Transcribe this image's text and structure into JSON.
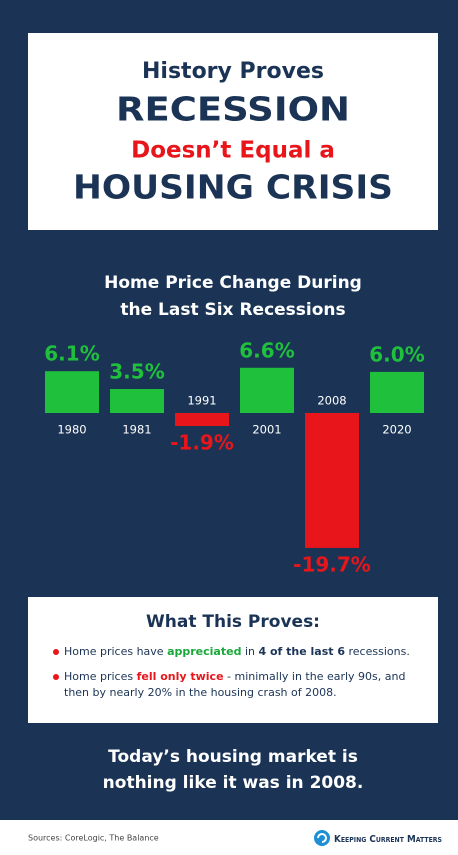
{
  "header": {
    "line1": "History Proves",
    "line2": "RECESSION",
    "line3": "Doesn’t Equal a",
    "line4": "HOUSING CRISIS"
  },
  "chart_data": {
    "type": "bar",
    "title_lines": [
      "Home Price Change During",
      "the Last Six Recessions"
    ],
    "categories": [
      "1980",
      "1981",
      "1991",
      "2001",
      "2008",
      "2020"
    ],
    "values": [
      6.1,
      3.5,
      -1.9,
      6.6,
      -19.7,
      6.0
    ],
    "value_labels": [
      "6.1%",
      "3.5%",
      "-1.9%",
      "6.6%",
      "-19.7%",
      "6.0%"
    ],
    "positive_color": "#1fc13c",
    "negative_color": "#e8151b"
  },
  "proves": {
    "title": "What This Proves:",
    "bullets": [
      [
        {
          "text": "Home prices have "
        },
        {
          "text": "appreciated",
          "color": "#1aa83a",
          "bold": true
        },
        {
          "text": " in "
        },
        {
          "text": "4 of the last 6",
          "bold": true
        },
        {
          "text": " recessions."
        }
      ],
      [
        {
          "text": "Home prices "
        },
        {
          "text": "fell only twice",
          "color": "#e8151b",
          "bold": true
        },
        {
          "text": " - minimally in the early 90s, and then by nearly 20% in the housing crash of 2008."
        }
      ]
    ]
  },
  "conclusion": [
    "Today’s housing market is",
    "nothing like it was in 2008."
  ],
  "footer": {
    "sources": "Sources: CoreLogic, The Balance",
    "brand": "Keeping Current Matters"
  }
}
